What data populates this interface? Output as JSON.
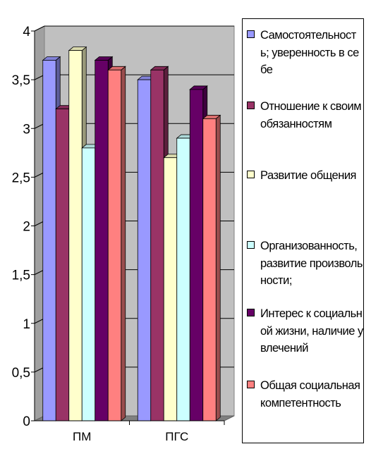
{
  "chart_data": {
    "type": "bar",
    "categories": [
      "ПМ",
      "ПГС"
    ],
    "yticks": [
      "0",
      "0,5",
      "1",
      "1,5",
      "2",
      "2,5",
      "3",
      "3,5",
      "4"
    ],
    "ylim": [
      0,
      4
    ],
    "grid": true,
    "legend_position": "right",
    "series": [
      {
        "name": "Самостоятельность; уверенность в себе",
        "values": [
          3.7,
          3.5
        ],
        "color": "#9999ff"
      },
      {
        "name": "Отношение к своим обязанностям",
        "values": [
          3.2,
          3.6
        ],
        "color": "#993366"
      },
      {
        "name": "Развитие общения",
        "values": [
          3.8,
          2.7
        ],
        "color": "#ffffcc"
      },
      {
        "name": "Организованность, развитие произвольности;",
        "values": [
          2.8,
          2.9
        ],
        "color": "#ccffff"
      },
      {
        "name": "Интерес к социальной жизни, наличие увлечений",
        "values": [
          3.7,
          3.4
        ],
        "color": "#660066"
      },
      {
        "name": "Общая социальная компетентность",
        "values": [
          3.6,
          3.1
        ],
        "color": "#ff8080"
      }
    ]
  }
}
